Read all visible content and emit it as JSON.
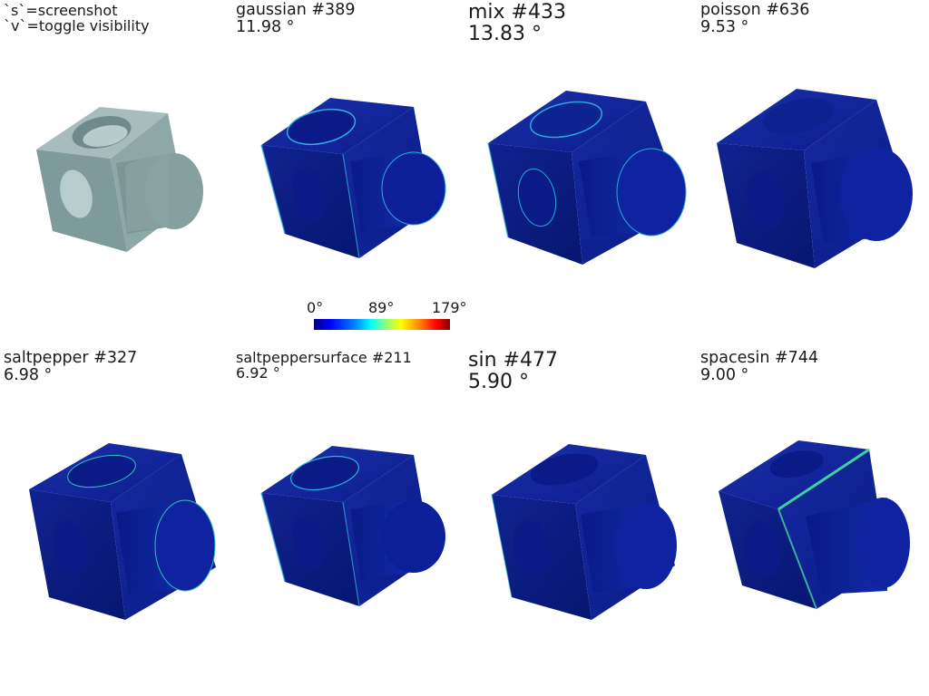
{
  "hints": {
    "line1": "`s`=screenshot",
    "line2": "`v`=toggle visibility"
  },
  "panels": [
    {
      "title": "",
      "value": ""
    },
    {
      "title": "gaussian #389",
      "value": "11.98 °"
    },
    {
      "title": "mix #433",
      "value": "13.83 °"
    },
    {
      "title": "poisson #636",
      "value": "9.53 °"
    },
    {
      "title": "saltpepper #327",
      "value": "6.98 °"
    },
    {
      "title": "saltpeppersurface #211",
      "value": "6.92 °"
    },
    {
      "title": "sin #477",
      "value": "5.90 °"
    },
    {
      "title": "spacesin #744",
      "value": "9.00 °"
    }
  ],
  "colorbar": {
    "min_label": "0°",
    "mid_label": "89°",
    "max_label": "179°"
  },
  "colors": {
    "reference_mesh": "#8fa6a6",
    "error_low": "#0a1a8c",
    "error_high": "#800000"
  },
  "icons": {
    "reference": "mesh-reference-icon",
    "noisy": "mesh-error-map-icon"
  }
}
